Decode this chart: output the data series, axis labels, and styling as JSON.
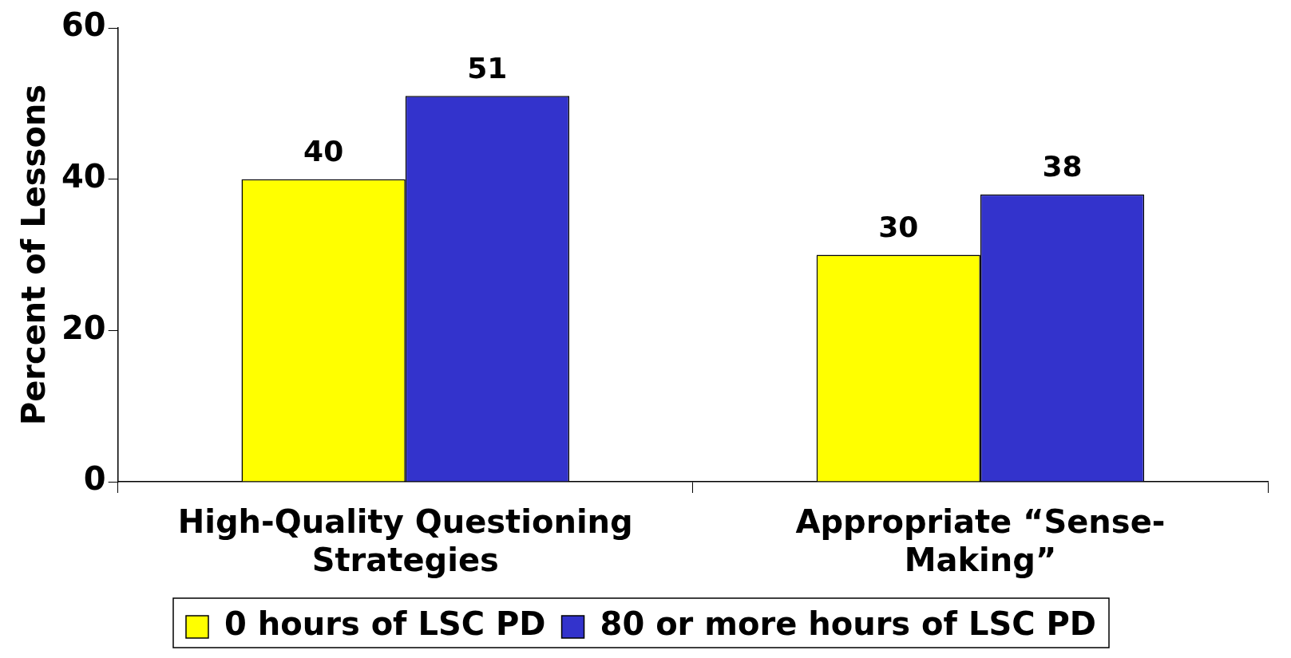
{
  "chart_data": {
    "type": "bar",
    "ylabel": "Percent of Lessons",
    "categories": [
      "High-Quality Questioning Strategies",
      "Appropriate “Sense-Making”"
    ],
    "series": [
      {
        "name": "0 hours of LSC PD",
        "color": "#ffff00",
        "values": [
          40,
          30
        ]
      },
      {
        "name": "80 or more hours of LSC PD",
        "color": "#3333cc",
        "values": [
          51,
          38
        ]
      }
    ],
    "ylim": [
      0,
      60
    ],
    "yticks": [
      0,
      20,
      40,
      60
    ],
    "grid": false,
    "legend": "bottom",
    "data_labels": true
  }
}
